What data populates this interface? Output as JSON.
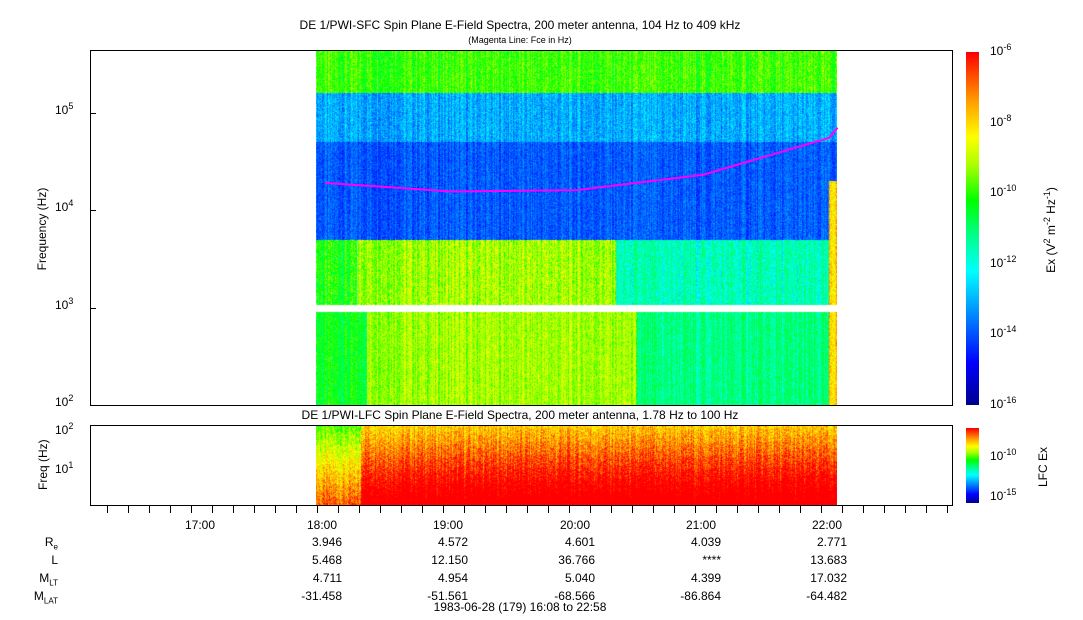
{
  "chart_data": [
    {
      "type": "heatmap",
      "title": "DE 1/PWI-SFC  Spin Plane E-Field Spectra, 200 meter antenna, 104 Hz to 409 kHz",
      "subtitle": "(Magenta Line: Fce in Hz)",
      "ylabel": "Frequency (Hz)",
      "yscale": "log",
      "ylim": [
        100,
        409000
      ],
      "yticks": [
        "10^2",
        "10^3",
        "10^4",
        "10^5"
      ],
      "xlim": [
        "16:08",
        "22:58"
      ],
      "data_coverage": [
        "18:00",
        "22:04"
      ],
      "colorbar": {
        "label": "Ex (V^2 m^-2 Hz^-1)",
        "scale": "log",
        "range": [
          1e-16,
          1e-06
        ],
        "ticks": [
          "10^-6",
          "10^-8",
          "10^-10",
          "10^-12",
          "10^-14",
          "10^-16"
        ]
      },
      "overlay_line": {
        "name": "Fce",
        "color": "#ff00ff",
        "times": [
          "18:00",
          "19:00",
          "20:00",
          "21:00",
          "22:00",
          "22:04"
        ],
        "values_hz": [
          19000,
          15500,
          16000,
          23000,
          55000,
          70000
        ]
      }
    },
    {
      "type": "heatmap",
      "title": "DE 1/PWI-LFC  Spin Plane E-Field Spectra, 200 meter antenna, 1.78 Hz to 100 Hz",
      "ylabel": "Freq (Hz)",
      "yscale": "log",
      "ylim": [
        1.78,
        100
      ],
      "yticks": [
        "10^1",
        "10^2"
      ],
      "xlim": [
        "16:08",
        "22:58"
      ],
      "data_coverage": [
        "18:00",
        "22:04"
      ],
      "colorbar": {
        "label": "LFC Ex",
        "scale": "log",
        "ticks": [
          "10^-10",
          "10^-15"
        ]
      }
    }
  ],
  "xaxis": {
    "ticks": [
      "17:00",
      "18:00",
      "19:00",
      "20:00",
      "21:00",
      "22:00"
    ]
  },
  "ephemeris": {
    "rows": [
      {
        "label": "R",
        "sub": "e",
        "values": [
          "",
          "3.946",
          "4.572",
          "4.601",
          "4.039",
          "2.771"
        ]
      },
      {
        "label": "L",
        "sub": "",
        "values": [
          "",
          "5.468",
          "12.150",
          "36.766",
          "****",
          "13.683"
        ]
      },
      {
        "label": "M",
        "sub": "LT",
        "values": [
          "",
          "4.711",
          "4.954",
          "5.040",
          "4.399",
          "17.032"
        ]
      },
      {
        "label": "M",
        "sub": "LAT",
        "values": [
          "",
          "-31.458",
          "-51.561",
          "-68.566",
          "-86.864",
          "-64.482"
        ]
      }
    ]
  },
  "footer": "1983-06-28 (179) 16:08 to 22:58"
}
